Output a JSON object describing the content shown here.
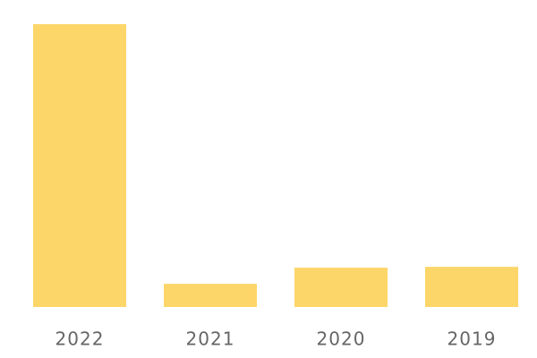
{
  "chart_data": {
    "type": "bar",
    "categories": [
      "2022",
      "2021",
      "2020",
      "2019"
    ],
    "values": [
      100,
      8.2,
      13.9,
      14.2
    ],
    "color": "#fdd66a"
  }
}
